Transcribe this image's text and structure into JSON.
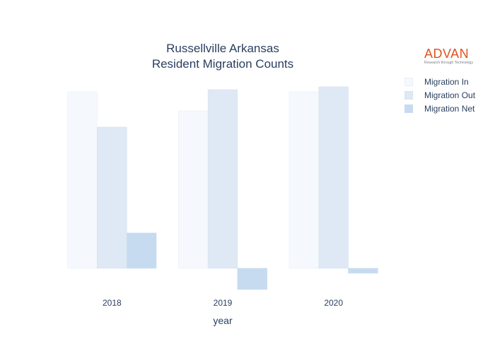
{
  "chart_data": {
    "type": "bar",
    "title": "Russellville Arkansas",
    "subtitle": "Resident Migration Counts",
    "xlabel": "year",
    "ylabel": "",
    "categories": [
      "2018",
      "2019",
      "2020"
    ],
    "series": [
      {
        "name": "Migration In",
        "values": [
          1250,
          1115,
          1250
        ],
        "color": "#f5f9fd",
        "stroke": "#e8eef7"
      },
      {
        "name": "Migration Out",
        "values": [
          1000,
          1265,
          1285
        ],
        "color": "#dfe9f5",
        "stroke": "#d6e2f0"
      },
      {
        "name": "Migration Net",
        "values": [
          250,
          -150,
          -35
        ],
        "color": "#c7dbf0",
        "stroke": "#c7dbf0"
      }
    ],
    "ylim": [
      -200,
      1400
    ],
    "grid": false,
    "legend": "top-right"
  },
  "logo": {
    "name": "ADVAN",
    "tagline": "Research through Technology"
  }
}
